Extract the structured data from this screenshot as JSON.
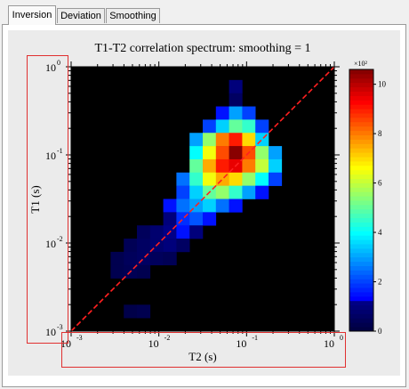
{
  "tabs": [
    {
      "label": "Inversion",
      "active": true
    },
    {
      "label": "Deviation",
      "active": false
    },
    {
      "label": "Smoothing",
      "active": false
    }
  ],
  "chart_data": {
    "type": "heatmap",
    "title": "T1-T2 correlation spectrum: smoothing = 1",
    "xlabel": "T2 (s)",
    "ylabel": "T1 (s)",
    "x_scale": "log",
    "y_scale": "log",
    "xlim": [
      0.001,
      1
    ],
    "ylim": [
      0.001,
      1
    ],
    "x_ticks": [
      {
        "base": "10",
        "exp": "-3"
      },
      {
        "base": "10",
        "exp": "-2"
      },
      {
        "base": "10",
        "exp": "-1"
      },
      {
        "base": "10",
        "exp": "0"
      }
    ],
    "y_ticks": [
      {
        "base": "10",
        "exp": "0"
      },
      {
        "base": "10",
        "exp": "-1"
      },
      {
        "base": "10",
        "exp": "-2"
      },
      {
        "base": "10",
        "exp": "-3"
      }
    ],
    "colorbar": {
      "multiplier": "×10²",
      "ticks": [
        "10",
        "8",
        "6",
        "4",
        "2",
        "0"
      ],
      "range": [
        0,
        10.6
      ],
      "colormap": "jet"
    },
    "diagonal_line": {
      "color": "#ff2020",
      "style": "dashed",
      "from": [
        0.001,
        0.001
      ],
      "to": [
        1,
        1
      ]
    },
    "grid": {
      "x_bins": 20,
      "y_bins": 20,
      "cells": [
        [
          12,
          1,
          1
        ],
        [
          12,
          2,
          0.6
        ],
        [
          11,
          3,
          1.5
        ],
        [
          12,
          3,
          3.0
        ],
        [
          13,
          3,
          2.0
        ],
        [
          10,
          4,
          2.0
        ],
        [
          11,
          4,
          3.5
        ],
        [
          12,
          4,
          5.0
        ],
        [
          13,
          4,
          4.5
        ],
        [
          14,
          4,
          2.0
        ],
        [
          9,
          5,
          3.0
        ],
        [
          10,
          5,
          5.5
        ],
        [
          11,
          5,
          8.0
        ],
        [
          12,
          5,
          9.0
        ],
        [
          13,
          5,
          7.0
        ],
        [
          14,
          5,
          3.5
        ],
        [
          9,
          6,
          4.0
        ],
        [
          10,
          6,
          6.5
        ],
        [
          11,
          6,
          8.5
        ],
        [
          12,
          6,
          10.5
        ],
        [
          13,
          6,
          8.5
        ],
        [
          14,
          6,
          5.5
        ],
        [
          15,
          6,
          3.0
        ],
        [
          9,
          7,
          5.0
        ],
        [
          10,
          7,
          7.5
        ],
        [
          11,
          7,
          9.0
        ],
        [
          12,
          7,
          9.5
        ],
        [
          13,
          7,
          8.0
        ],
        [
          14,
          7,
          6.0
        ],
        [
          15,
          7,
          3.5
        ],
        [
          8,
          8,
          2.5
        ],
        [
          9,
          8,
          4.5
        ],
        [
          10,
          8,
          6.5
        ],
        [
          11,
          8,
          7.5
        ],
        [
          12,
          8,
          7.0
        ],
        [
          13,
          8,
          5.5
        ],
        [
          14,
          8,
          4.0
        ],
        [
          15,
          8,
          2.0
        ],
        [
          8,
          9,
          2.0
        ],
        [
          9,
          9,
          3.5
        ],
        [
          10,
          9,
          5.0
        ],
        [
          11,
          9,
          5.5
        ],
        [
          12,
          9,
          4.5
        ],
        [
          13,
          9,
          3.0
        ],
        [
          14,
          9,
          1.5
        ],
        [
          7,
          10,
          1.5
        ],
        [
          8,
          10,
          2.5
        ],
        [
          9,
          10,
          3.0
        ],
        [
          10,
          10,
          3.5
        ],
        [
          11,
          10,
          2.5
        ],
        [
          12,
          10,
          1.5
        ],
        [
          7,
          11,
          1.0
        ],
        [
          8,
          11,
          1.8
        ],
        [
          9,
          11,
          2.2
        ],
        [
          10,
          11,
          1.5
        ],
        [
          5,
          12,
          0.5
        ],
        [
          6,
          12,
          0.8
        ],
        [
          7,
          12,
          1.2
        ],
        [
          8,
          12,
          1.5
        ],
        [
          9,
          12,
          1.0
        ],
        [
          4,
          13,
          0.4
        ],
        [
          5,
          13,
          0.6
        ],
        [
          6,
          13,
          0.8
        ],
        [
          7,
          13,
          1.0
        ],
        [
          8,
          13,
          0.6
        ],
        [
          3,
          14,
          0.3
        ],
        [
          4,
          14,
          0.5
        ],
        [
          5,
          14,
          0.6
        ],
        [
          6,
          14,
          0.5
        ],
        [
          7,
          14,
          0.4
        ],
        [
          3,
          15,
          0.3
        ],
        [
          4,
          15,
          0.4
        ],
        [
          5,
          15,
          0.3
        ],
        [
          4,
          18,
          0.2
        ],
        [
          5,
          18,
          0.3
        ]
      ]
    }
  }
}
